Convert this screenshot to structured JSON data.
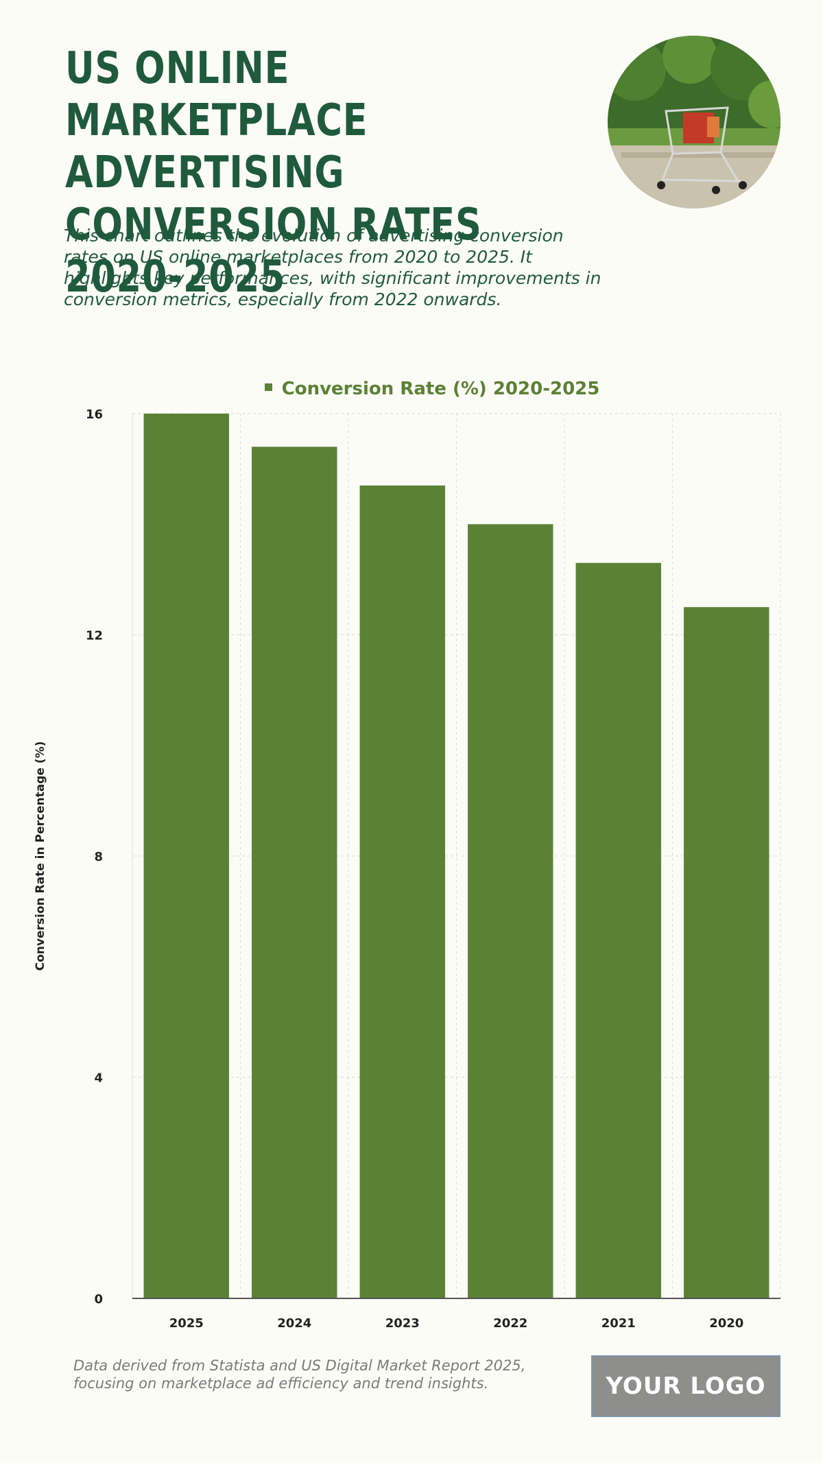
{
  "header": {
    "title": "US ONLINE MARKETPLACE ADVERTISING CONVERSION RATES 2020-2025",
    "description": "This chart outlines the evolution of advertising conversion rates on US online marketplaces from 2020 to 2025. It highlights key performances, with significant improvements in conversion metrics, especially from 2022 onwards."
  },
  "footer": {
    "source": "Data derived from Statista and US Digital Market Report 2025, focusing on marketplace ad efficiency and trend insights.",
    "logo": "YOUR LOGO"
  },
  "colors": {
    "bar": "#5b8135",
    "title": "#1f5a3c",
    "background": "#fcfcf7"
  },
  "chart_data": {
    "type": "bar",
    "title": "",
    "legend": "Conversion Rate (%) 2020-2025",
    "categories": [
      "2025",
      "2024",
      "2023",
      "2022",
      "2021",
      "2020"
    ],
    "series": [
      {
        "name": "Conversion Rate (%) 2020-2025",
        "values": [
          16.0,
          15.4,
          14.7,
          14.0,
          13.3,
          12.5
        ]
      }
    ],
    "xlabel": "",
    "ylabel": "Conversion Rate in Percentage (%)",
    "ylim": [
      0,
      16
    ],
    "yticks": [
      0,
      4,
      8,
      12,
      16
    ],
    "grid": true,
    "legend_position": "top-center"
  }
}
